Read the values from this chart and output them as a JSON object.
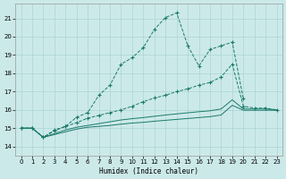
{
  "background_color": "#cce9e9",
  "grid_color": "#aad4d4",
  "line_color": "#1a7a6a",
  "xlabel": "Humidex (Indice chaleur)",
  "xlim": [
    -0.5,
    23.5
  ],
  "ylim": [
    13.5,
    21.8
  ],
  "yticks": [
    14,
    15,
    16,
    17,
    18,
    19,
    20,
    21
  ],
  "xticks": [
    0,
    1,
    2,
    3,
    4,
    5,
    6,
    7,
    8,
    9,
    10,
    11,
    12,
    13,
    14,
    15,
    16,
    17,
    18,
    19,
    20,
    21,
    22,
    23
  ],
  "s1_x": [
    0,
    1,
    2,
    3,
    4,
    5,
    6,
    7,
    8,
    9,
    10,
    11,
    12,
    13,
    14,
    15,
    16,
    17,
    18,
    19,
    20
  ],
  "s1_y": [
    15.0,
    15.0,
    14.5,
    14.9,
    15.1,
    15.6,
    15.85,
    16.8,
    17.35,
    18.5,
    18.85,
    19.4,
    20.4,
    21.05,
    21.3,
    19.5,
    18.4,
    19.3,
    19.5,
    19.7,
    16.6
  ],
  "s2_x": [
    0,
    1,
    2,
    3,
    4,
    5,
    6,
    7,
    8,
    9,
    10,
    11,
    12,
    13,
    14,
    15,
    16,
    17,
    18,
    19,
    20,
    21,
    22,
    23
  ],
  "s2_y": [
    15.0,
    15.0,
    14.5,
    14.85,
    15.1,
    15.3,
    15.55,
    15.7,
    15.85,
    16.0,
    16.2,
    16.45,
    16.65,
    16.8,
    17.0,
    17.15,
    17.35,
    17.5,
    17.8,
    18.5,
    16.2,
    16.1,
    16.1,
    16.0
  ],
  "s3_x": [
    0,
    1,
    2,
    3,
    4,
    5,
    6,
    7,
    8,
    9,
    10,
    11,
    12,
    13,
    14,
    15,
    16,
    17,
    18,
    19,
    20,
    21,
    22,
    23
  ],
  "s3_y": [
    15.0,
    15.0,
    14.5,
    14.7,
    14.9,
    15.05,
    15.15,
    15.25,
    15.35,
    15.45,
    15.52,
    15.58,
    15.65,
    15.72,
    15.78,
    15.84,
    15.9,
    15.95,
    16.05,
    16.55,
    16.05,
    16.05,
    16.05,
    16.0
  ],
  "s4_x": [
    0,
    1,
    2,
    3,
    4,
    5,
    6,
    7,
    8,
    9,
    10,
    11,
    12,
    13,
    14,
    15,
    16,
    17,
    18,
    19,
    20,
    21,
    22,
    23
  ],
  "s4_y": [
    15.0,
    15.0,
    14.5,
    14.65,
    14.8,
    14.95,
    15.05,
    15.1,
    15.15,
    15.22,
    15.28,
    15.32,
    15.38,
    15.43,
    15.48,
    15.53,
    15.58,
    15.63,
    15.72,
    16.25,
    15.98,
    15.98,
    15.98,
    15.98
  ]
}
